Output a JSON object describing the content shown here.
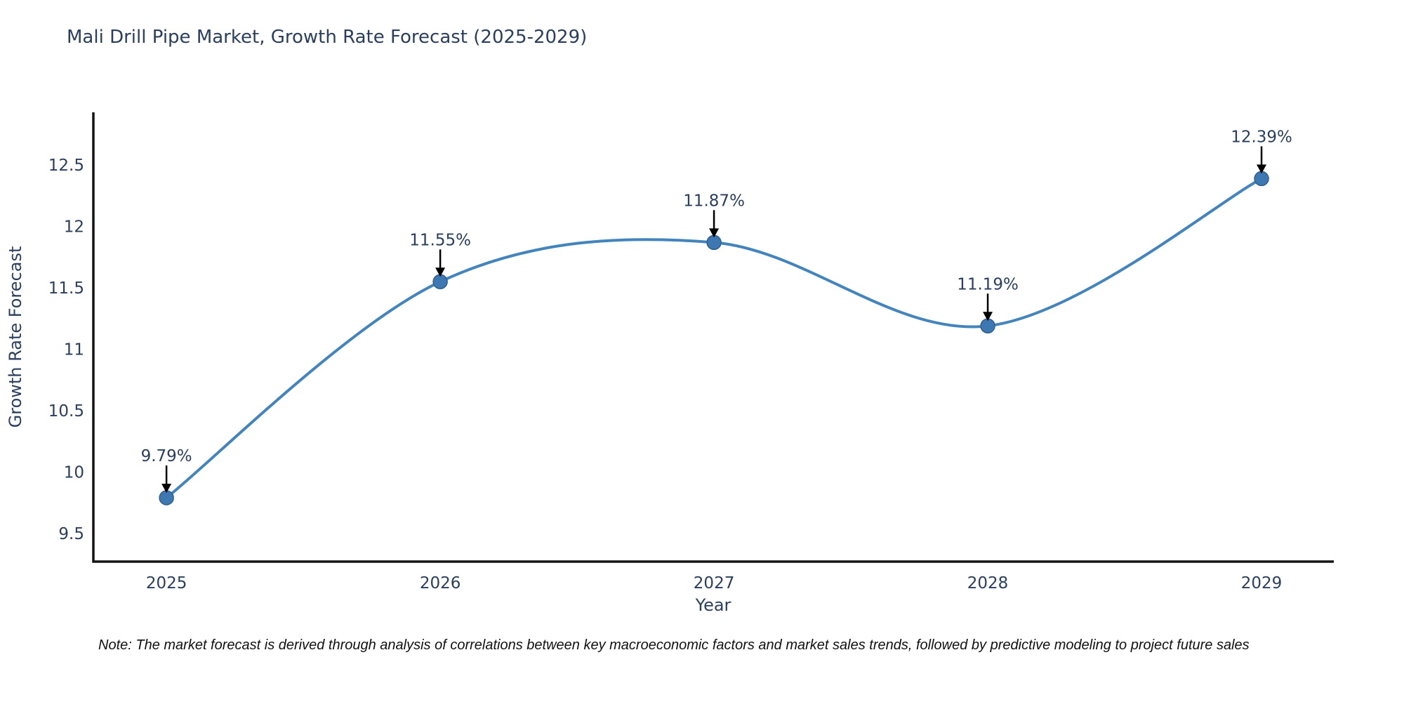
{
  "page": {
    "title": "Mali Drill Pipe Market, Growth Rate Forecast (2025-2029)",
    "note": "Note: The market forecast is derived through analysis of correlations between key macroeconomic factors and market sales trends, followed by predictive modeling to project future sales"
  },
  "chart_data": {
    "type": "line",
    "title": "Mali Drill Pipe Market, Growth Rate Forecast (2025-2029)",
    "x": [
      2025,
      2026,
      2027,
      2028,
      2029
    ],
    "series": [
      {
        "name": "Growth Rate Forecast",
        "values": [
          9.79,
          11.55,
          11.87,
          11.19,
          12.39
        ]
      }
    ],
    "point_labels": [
      "9.79%",
      "11.55%",
      "11.87%",
      "11.19%",
      "12.39%"
    ],
    "xlabel": "Year",
    "ylabel": "Growth Rate Forecast",
    "xticks": [
      "2025",
      "2026",
      "2027",
      "2028",
      "2029"
    ],
    "yticks": [
      9.5,
      10,
      10.5,
      11,
      11.5,
      12,
      12.5
    ],
    "xlim": [
      2024.733,
      2029.264
    ],
    "ylim": [
      9.27,
      12.93
    ],
    "grid": false,
    "legend": "none",
    "line_shape": "spline",
    "colors": {
      "line": "#4484bd",
      "marker": "#3d78b2",
      "marker_edge": "#2f5f8f",
      "arrow": "#000000",
      "axis": "#141414",
      "text": "#2a3f5f"
    }
  }
}
